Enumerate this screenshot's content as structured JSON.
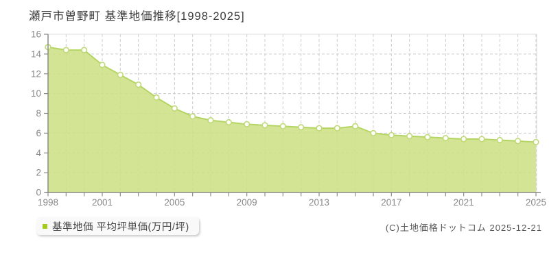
{
  "page": {
    "title": "瀬戸市曽野町 基準地価推移[1998-2025]",
    "copyright": "(C)土地価格ドットコム 2025-12-21"
  },
  "legend": {
    "label": "基準地価 平均坪単価(万円/坪)",
    "marker_color": "#a3cc1e"
  },
  "chart_data": {
    "type": "area",
    "title": "瀬戸市曽野町 基準地価推移[1998-2025]",
    "series_name": "基準地価 平均坪単価(万円/坪)",
    "ylabel": "平均坪単価(万円/坪)",
    "x": [
      1998,
      1999,
      2000,
      2001,
      2002,
      2003,
      2004,
      2005,
      2006,
      2007,
      2008,
      2009,
      2010,
      2011,
      2012,
      2013,
      2014,
      2015,
      2016,
      2017,
      2018,
      2019,
      2020,
      2021,
      2022,
      2023,
      2024,
      2025
    ],
    "values": [
      14.7,
      14.4,
      14.4,
      12.9,
      11.9,
      10.9,
      9.6,
      8.5,
      7.7,
      7.3,
      7.1,
      6.9,
      6.8,
      6.7,
      6.6,
      6.5,
      6.5,
      6.7,
      6.0,
      5.8,
      5.7,
      5.6,
      5.5,
      5.4,
      5.4,
      5.3,
      5.2,
      5.1
    ],
    "ylim": [
      0,
      16
    ],
    "y_ticks": [
      0,
      2,
      4,
      6,
      8,
      10,
      12,
      14,
      16
    ],
    "x_tick_labels": [
      1998,
      2001,
      2005,
      2009,
      2013,
      2017,
      2021,
      2025
    ],
    "grid": true,
    "legend_position": "bottom-left",
    "colors": {
      "area_fill": "#cde085",
      "line": "#b5d563",
      "marker_fill": "#fffffb",
      "marker_stroke": "#bfd976",
      "grid": "#cccccc",
      "border": "#dddddd",
      "axis": "#8a8a8a",
      "tick_label": "#888888"
    }
  }
}
